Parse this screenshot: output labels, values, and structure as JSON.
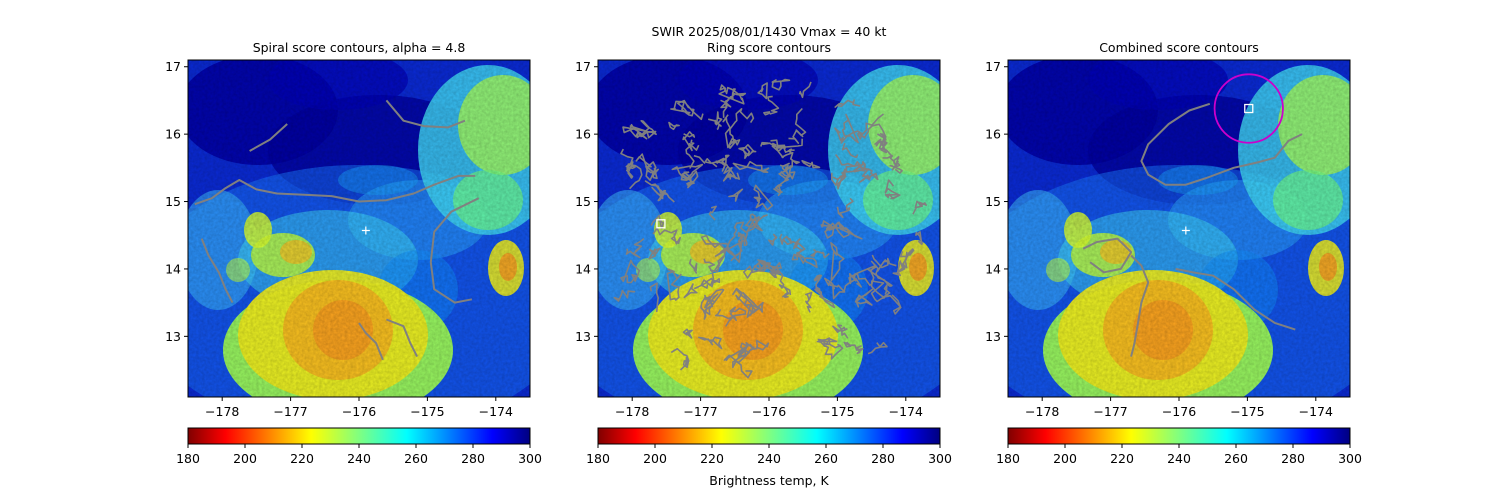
{
  "suptitle": "SWIR  2025/08/01/1430    Vmax = 40 kt",
  "colorbar_label": "Brightness temp, K",
  "colors": {
    "contour": "#808080",
    "marker": "#ffffff",
    "circle": "#cc00cc"
  },
  "chart_data": [
    {
      "type": "heatmap",
      "title": "Spiral score contours, alpha =  4.8",
      "xlim": [
        -178.5,
        -173.5
      ],
      "ylim": [
        12.1,
        17.1
      ],
      "xticks": [
        -178,
        -177,
        -176,
        -175,
        -174
      ],
      "xtick_labels": [
        "−178",
        "−177",
        "−176",
        "−175",
        "−174"
      ],
      "yticks": [
        13,
        14,
        15,
        16,
        17
      ],
      "ytick_labels": [
        "13",
        "14",
        "15",
        "16",
        "17"
      ],
      "colormap": "jet_r",
      "clim": [
        180,
        300
      ],
      "colorbar_ticks": [
        "180",
        "200",
        "220",
        "240",
        "260",
        "280",
        "300"
      ],
      "center_marker": [
        -175.9,
        14.57
      ],
      "best_box": null,
      "circle": null,
      "contours": [
        [
          [
            -178.4,
            14.96
          ],
          [
            -178.15,
            15.05
          ],
          [
            -177.95,
            15.2
          ],
          [
            -177.75,
            15.32
          ],
          [
            -177.5,
            15.18
          ],
          [
            -177.2,
            15.12
          ],
          [
            -176.8,
            15.1
          ],
          [
            -176.4,
            15.08
          ],
          [
            -176,
            15.0
          ],
          [
            -175.6,
            15.02
          ],
          [
            -175.2,
            15.12
          ],
          [
            -174.9,
            15.25
          ],
          [
            -174.55,
            15.38
          ],
          [
            -174.3,
            15.38
          ]
        ],
        [
          [
            -177.6,
            15.75
          ],
          [
            -177.3,
            15.92
          ],
          [
            -177.05,
            16.15
          ]
        ],
        [
          [
            -175.6,
            16.5
          ],
          [
            -175.35,
            16.2
          ],
          [
            -175.05,
            16.12
          ],
          [
            -174.7,
            16.1
          ],
          [
            -174.45,
            16.2
          ]
        ],
        [
          [
            -178.3,
            14.45
          ],
          [
            -178.2,
            14.2
          ],
          [
            -178.05,
            13.95
          ],
          [
            -177.95,
            13.7
          ],
          [
            -177.85,
            13.5
          ]
        ],
        [
          [
            -175.6,
            13.25
          ],
          [
            -175.35,
            13.15
          ],
          [
            -175.25,
            12.9
          ],
          [
            -175.15,
            12.7
          ]
        ],
        [
          [
            -176.0,
            13.2
          ],
          [
            -175.9,
            13.05
          ],
          [
            -175.75,
            12.9
          ],
          [
            -175.65,
            12.65
          ]
        ],
        [
          [
            -174.25,
            15.05
          ],
          [
            -174.65,
            14.85
          ],
          [
            -174.9,
            14.55
          ],
          [
            -174.95,
            14.1
          ],
          [
            -174.9,
            13.7
          ],
          [
            -174.6,
            13.5
          ],
          [
            -174.35,
            13.55
          ]
        ]
      ],
      "rings": null
    },
    {
      "type": "heatmap",
      "title": "Ring score contours",
      "xlim": [
        -178.5,
        -173.5
      ],
      "ylim": [
        12.1,
        17.1
      ],
      "xticks": [
        -178,
        -177,
        -176,
        -175,
        -174
      ],
      "xtick_labels": [
        "−178",
        "−177",
        "−176",
        "−175",
        "−174"
      ],
      "yticks": [
        13,
        14,
        15,
        16,
        17
      ],
      "ytick_labels": [
        "13",
        "14",
        "15",
        "16",
        "17"
      ],
      "colormap": "jet_r",
      "clim": [
        180,
        300
      ],
      "colorbar_ticks": [
        "180",
        "200",
        "220",
        "240",
        "260",
        "280",
        "300"
      ],
      "center_marker": null,
      "best_box": [
        -177.58,
        14.67
      ],
      "circle": null,
      "contours": [],
      "rings": {
        "center": [
          -176.0,
          14.55
        ],
        "radius_deg": 2.3,
        "clip_south": 12.7
      }
    },
    {
      "type": "heatmap",
      "title": "Combined score contours",
      "xlim": [
        -178.5,
        -173.5
      ],
      "ylim": [
        12.1,
        17.1
      ],
      "xticks": [
        -178,
        -177,
        -176,
        -175,
        -174
      ],
      "xtick_labels": [
        "−178",
        "−177",
        "−176",
        "−175",
        "−174"
      ],
      "yticks": [
        13,
        14,
        15,
        16,
        17
      ],
      "ytick_labels": [
        "13",
        "14",
        "15",
        "16",
        "17"
      ],
      "colormap": "jet_r",
      "clim": [
        180,
        300
      ],
      "colorbar_ticks": [
        "180",
        "200",
        "220",
        "240",
        "260",
        "280",
        "300"
      ],
      "center_marker": [
        -175.9,
        14.57
      ],
      "best_box": [
        -174.98,
        16.38
      ],
      "circle": {
        "center": [
          -174.98,
          16.38
        ],
        "radius_deg": 0.5
      },
      "contours": [
        [
          [
            -175.55,
            16.45
          ],
          [
            -175.85,
            16.35
          ],
          [
            -176.15,
            16.15
          ],
          [
            -176.45,
            15.85
          ],
          [
            -176.55,
            15.6
          ],
          [
            -176.45,
            15.4
          ],
          [
            -176.2,
            15.25
          ],
          [
            -175.9,
            15.25
          ],
          [
            -175.6,
            15.35
          ],
          [
            -175.2,
            15.5
          ],
          [
            -174.85,
            15.58
          ],
          [
            -174.6,
            15.65
          ],
          [
            -174.4,
            15.9
          ],
          [
            -174.2,
            16.0
          ]
        ],
        [
          [
            -177.4,
            14.3
          ],
          [
            -177.2,
            14.4
          ],
          [
            -176.9,
            14.45
          ],
          [
            -176.7,
            14.25
          ],
          [
            -176.85,
            14.0
          ],
          [
            -177.1,
            13.95
          ],
          [
            -177.3,
            14.1
          ]
        ],
        [
          [
            -176.7,
            14.2
          ],
          [
            -176.55,
            14.05
          ],
          [
            -176.45,
            13.8
          ],
          [
            -176.55,
            13.5
          ],
          [
            -176.6,
            13.2
          ],
          [
            -176.65,
            12.9
          ],
          [
            -176.7,
            12.7
          ]
        ],
        [
          [
            -176.05,
            14.0
          ],
          [
            -175.8,
            13.95
          ],
          [
            -175.5,
            13.9
          ],
          [
            -175.2,
            13.7
          ],
          [
            -174.9,
            13.4
          ],
          [
            -174.6,
            13.2
          ],
          [
            -174.3,
            13.1
          ]
        ]
      ],
      "rings": null
    }
  ]
}
